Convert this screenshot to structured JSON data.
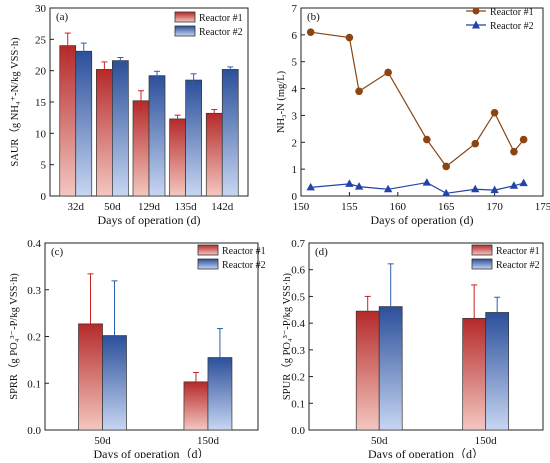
{
  "colors": {
    "reactor1_top": "#b42a2a",
    "reactor1_bottom": "#f4c7c0",
    "reactor2_top": "#2b4f9a",
    "reactor2_bottom": "#c7d6f2",
    "line1": "#8b4513",
    "line2": "#2443a8",
    "error_red": "#cc2222",
    "error_blue": "#2b5fb0"
  },
  "chart_data": [
    {
      "id": "a",
      "panel_label": "(a)",
      "type": "bar",
      "categories": [
        "32d",
        "50d",
        "129d",
        "135d",
        "142d"
      ],
      "series": [
        {
          "name": "Reactor #1",
          "values": [
            24.0,
            20.2,
            15.2,
            12.3,
            13.2
          ],
          "errors": [
            2.0,
            1.2,
            1.6,
            0.6,
            0.6
          ]
        },
        {
          "name": "Reactor #2",
          "values": [
            23.1,
            21.6,
            19.2,
            18.5,
            20.2
          ],
          "errors": [
            1.3,
            0.5,
            0.7,
            1.0,
            0.4
          ]
        }
      ],
      "xlabel": "Days of operation (d)",
      "ylabel": "SAUR（g NH₄⁺-N/kg VSS·h)",
      "ylim": [
        0,
        30
      ],
      "yticks": [
        "0",
        "5",
        "10",
        "15",
        "20",
        "25",
        "30"
      ],
      "legend": "top-right"
    },
    {
      "id": "b",
      "panel_label": "(b)",
      "type": "line",
      "series": [
        {
          "name": "Reactor #1",
          "marker": "circle",
          "x": [
            151,
            155,
            156,
            159,
            163,
            165,
            168,
            170,
            172,
            173
          ],
          "y": [
            6.1,
            5.9,
            3.9,
            4.6,
            2.1,
            1.1,
            1.95,
            3.1,
            1.65,
            2.1
          ]
        },
        {
          "name": "Reactor #2",
          "marker": "triangle",
          "x": [
            151,
            155,
            156,
            159,
            163,
            165,
            168,
            170,
            172,
            173
          ],
          "y": [
            0.32,
            0.45,
            0.35,
            0.25,
            0.5,
            0.1,
            0.25,
            0.22,
            0.38,
            0.48
          ]
        }
      ],
      "xlabel": "Days of operation (d)",
      "ylabel": "NH₃-N (mg/L)",
      "xlim": [
        150,
        175
      ],
      "ylim": [
        0,
        7
      ],
      "xticks": [
        "150",
        "155",
        "160",
        "165",
        "170",
        "175"
      ],
      "yticks": [
        "0",
        "1",
        "2",
        "3",
        "4",
        "5",
        "6",
        "7"
      ],
      "legend": "top-right"
    },
    {
      "id": "c",
      "panel_label": "(c)",
      "type": "bar",
      "categories": [
        "50d",
        "150d"
      ],
      "series": [
        {
          "name": "Reactor #1",
          "values": [
            0.227,
            0.103
          ],
          "errors": [
            0.107,
            0.02
          ]
        },
        {
          "name": "Reactor #2",
          "values": [
            0.202,
            0.155
          ],
          "errors": [
            0.117,
            0.062
          ]
        }
      ],
      "xlabel": "Days of operation（d）",
      "ylabel": "SPRR（g PO₄³⁻-P/kg VSS·h)",
      "ylim": [
        0,
        0.4
      ],
      "yticks": [
        "0.0",
        "0.1",
        "0.2",
        "0.3",
        "0.4"
      ],
      "legend": "top-right"
    },
    {
      "id": "d",
      "panel_label": "(d)",
      "type": "bar",
      "categories": [
        "50d",
        "150d"
      ],
      "series": [
        {
          "name": "Reactor #1",
          "values": [
            0.445,
            0.418
          ],
          "errors": [
            0.055,
            0.125
          ]
        },
        {
          "name": "Reactor #2",
          "values": [
            0.462,
            0.44
          ],
          "errors": [
            0.16,
            0.057
          ]
        }
      ],
      "xlabel": "Days of operation（d）",
      "ylabel": "SPUR（g PO₄³⁻-P/kg VSS·h)",
      "ylim": [
        0,
        0.7
      ],
      "yticks": [
        "0.0",
        "0.1",
        "0.2",
        "0.3",
        "0.4",
        "0.5",
        "0.6",
        "0.7"
      ],
      "legend": "top-right"
    }
  ]
}
